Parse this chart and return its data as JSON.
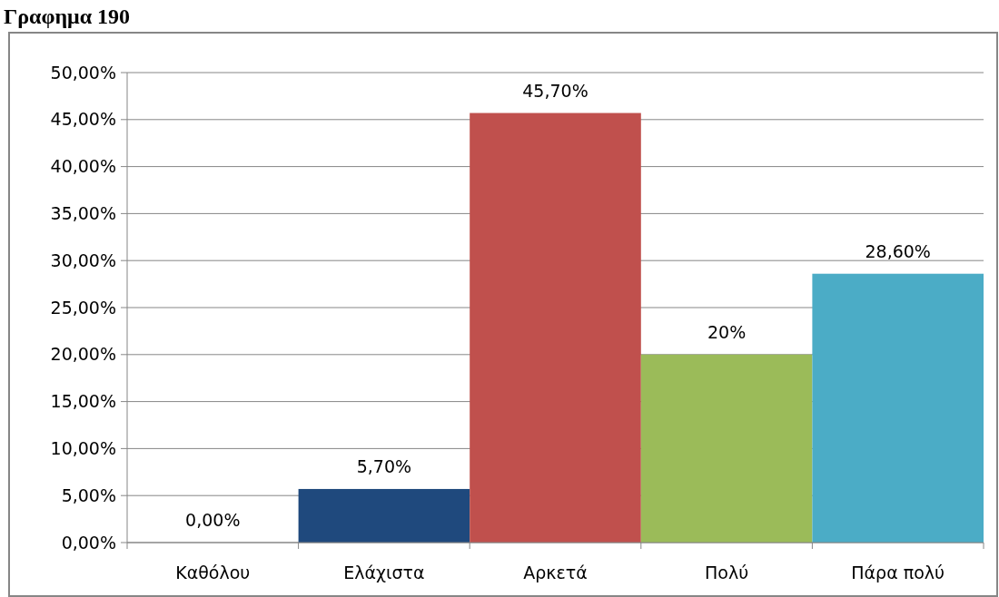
{
  "chart_data": {
    "type": "bar",
    "title": "Γραφημα 190",
    "categories": [
      "Καθόλου",
      "Ελάχιστα",
      "Αρκετά",
      "Πολύ",
      "Πάρα πολύ"
    ],
    "values": [
      0,
      5.7,
      45.7,
      20,
      28.6
    ],
    "colors": [
      "#4f81bd",
      "#1f497d",
      "#c0504d",
      "#9bbb59",
      "#4bacc6"
    ],
    "value_labels": [
      "0,00%",
      "5,70%",
      "45,70%",
      "20%",
      "28,60%"
    ],
    "ylim": [
      0,
      50
    ],
    "yticks": [
      {
        "value": 0,
        "label": "0,00%"
      },
      {
        "value": 5,
        "label": "5,00%"
      },
      {
        "value": 10,
        "label": "10,00%"
      },
      {
        "value": 15,
        "label": "15,00%"
      },
      {
        "value": 20,
        "label": "20,00%"
      },
      {
        "value": 25,
        "label": "25,00%"
      },
      {
        "value": 30,
        "label": "30,00%"
      },
      {
        "value": 35,
        "label": "35,00%"
      },
      {
        "value": 40,
        "label": "40,00%"
      },
      {
        "value": 45,
        "label": "45,00%"
      },
      {
        "value": 50,
        "label": "50,00%"
      }
    ],
    "grid": "y"
  }
}
